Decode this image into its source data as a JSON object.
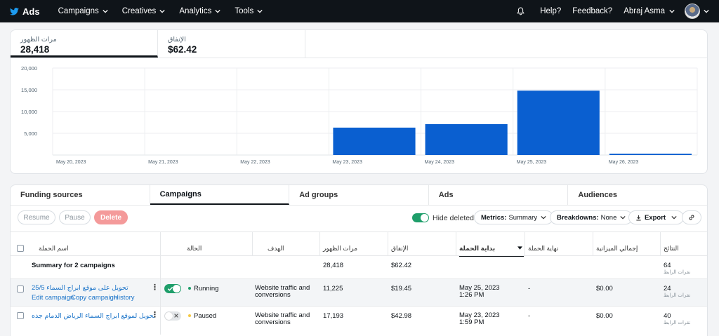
{
  "nav": {
    "brand": "Ads",
    "items": [
      "Campaigns",
      "Creatives",
      "Analytics",
      "Tools"
    ],
    "help": "Help?",
    "feedback": "Feedback?",
    "user": "Abraj Asma"
  },
  "metrics": [
    {
      "label": "مرات الظهور",
      "value": "28,418"
    },
    {
      "label": "الإنفاق",
      "value": "$62.42"
    }
  ],
  "chart_data": {
    "type": "bar",
    "categories": [
      "May 20, 2023",
      "May 21, 2023",
      "May 22, 2023",
      "May 23, 2023",
      "May 24, 2023",
      "May 25, 2023",
      "May 26, 2023"
    ],
    "values": [
      0,
      0,
      0,
      6300,
      7100,
      14800,
      300
    ],
    "ylim": [
      0,
      20000
    ],
    "yticks": [
      "5,000",
      "10,000",
      "15,000",
      "20,000"
    ],
    "ytick_values": [
      5000,
      10000,
      15000,
      20000
    ],
    "bar_color": "#0a5fd0",
    "grid": true
  },
  "entity_tabs": [
    "Funding sources",
    "Campaigns",
    "Ad groups",
    "Ads",
    "Audiences"
  ],
  "toolbar": {
    "resume": "Resume",
    "pause": "Pause",
    "delete": "Delete",
    "hide_deleted": "Hide deleted",
    "metrics_label": "Metrics:",
    "metrics_value": "Summary",
    "breakdowns_label": "Breakdowns:",
    "breakdowns_value": "None",
    "export": "Export"
  },
  "table": {
    "headers": {
      "name": "اسم الحملة",
      "status": "الحالة",
      "objective": "الهدف",
      "impressions": "مرات الظهور",
      "spend": "الإنفاق",
      "start": "بداية الحملة",
      "end": "نهاية الحملة",
      "budget": "إجمالي الميزانية",
      "results": "النتائج"
    },
    "summary": {
      "label": "Summary for 2 campaigns",
      "impressions": "28,418",
      "spend": "$62.42",
      "results": "64",
      "results_sub": "نقرات الرابط"
    },
    "rows": [
      {
        "name": "تحويل على موقع ابراج السماء 25/5",
        "actions": [
          "Edit campaign",
          "Copy campaign",
          "History"
        ],
        "status": "Running",
        "objective_line1": "Website traffic and",
        "objective_line2": "conversions",
        "impressions": "11,225",
        "spend": "$19.45",
        "start_date": "May 25, 2023",
        "start_time": "1:26 PM",
        "end": "-",
        "budget": "$0.00",
        "results": "24",
        "results_sub": "نقرات الرابط"
      },
      {
        "name": "تحويل لموقع ابراج السماء الرياض الدمام جده",
        "status": "Paused",
        "objective_line1": "Website traffic and",
        "objective_line2": "conversions",
        "impressions": "17,193",
        "spend": "$42.98",
        "start_date": "May 23, 2023",
        "start_time": "1:59 PM",
        "end": "-",
        "budget": "$0.00",
        "results": "40",
        "results_sub": "نقرات الرابط"
      }
    ]
  }
}
